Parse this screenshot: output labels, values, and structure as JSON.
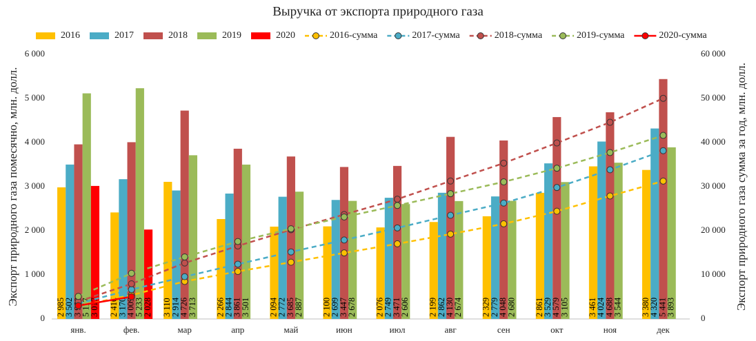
{
  "chart_data": {
    "type": "bar",
    "title": "Выручка от экспорта природного газа",
    "y_label": "Экспорт природного газа помесячно, млн. долл.",
    "y2_label": "Экспорт природного газа сумма за год, млн. долл.",
    "categories": [
      "янв.",
      "фев.",
      "мар",
      "апр",
      "май",
      "июн",
      "июл",
      "авг",
      "сен",
      "окт",
      "ноя",
      "дек"
    ],
    "ylim": [
      0,
      6000
    ],
    "yticks": [
      0,
      {
        "value": 1000,
        "label": "1 000"
      },
      {
        "value": 2000,
        "label": "2 000"
      },
      {
        "value": 3000,
        "label": "3 000"
      },
      {
        "value": 4000,
        "label": "4 000"
      },
      {
        "value": 5000,
        "label": "5 000"
      },
      {
        "value": 6000,
        "label": "6 000"
      }
    ],
    "y2lim": [
      0,
      60000
    ],
    "y2ticks": [
      0,
      {
        "value": 10000,
        "label": "10 000"
      },
      {
        "value": 20000,
        "label": "20 000"
      },
      {
        "value": 30000,
        "label": "30 000"
      },
      {
        "value": 40000,
        "label": "40 000"
      },
      {
        "value": 50000,
        "label": "50 000"
      },
      {
        "value": 60000,
        "label": "60 000"
      }
    ],
    "grid": false,
    "legend": "top",
    "series": [
      {
        "name": "2016",
        "type": "bar",
        "color": "#ffc000",
        "values": [
          2985,
          2416,
          3110,
          2266,
          2094,
          2100,
          2076,
          2199,
          2329,
          2861,
          3461,
          3380
        ],
        "value_labels": [
          "2 985",
          "2 416",
          "3 110",
          "2 266",
          "2 094",
          "2 100",
          "2 076",
          "2 199",
          "2 329",
          "2 861",
          "3 461",
          "3 380"
        ]
      },
      {
        "name": "2017",
        "type": "bar",
        "color": "#4bacc6",
        "values": [
          3502,
          3170,
          2914,
          2844,
          2772,
          2699,
          2749,
          2862,
          2779,
          3529,
          4024,
          4320
        ],
        "value_labels": [
          "3 502",
          "3 170",
          "2 914",
          "2 844",
          "2 772",
          "2 699",
          "2 749",
          "2 862",
          "2 779",
          "3 529",
          "4 024",
          "4 320"
        ]
      },
      {
        "name": "2018",
        "type": "bar",
        "color": "#c0504d",
        "values": [
          3960,
          4009,
          4726,
          3861,
          3685,
          3447,
          3471,
          4130,
          4048,
          4579,
          4688,
          5441
        ],
        "value_labels": [
          "3 960",
          "4 009",
          "4 726",
          "3 861",
          "3 685",
          "3 447",
          "3 471",
          "4 130",
          "4 048",
          "4 579",
          "4 688",
          "5 441"
        ]
      },
      {
        "name": "2019",
        "type": "bar",
        "color": "#9bbb59",
        "values": [
          5117,
          5233,
          3713,
          3501,
          2887,
          2678,
          2606,
          2674,
          2680,
          3105,
          3544,
          3893
        ],
        "value_labels": [
          "5 117",
          "5 233",
          "3 713",
          "3 501",
          "2 887",
          "2 678",
          "2 606",
          "2 674",
          "2 680",
          "3 105",
          "3 544",
          "3 893"
        ]
      },
      {
        "name": "2020",
        "type": "bar",
        "color": "#ff0000",
        "values": [
          3017,
          2028,
          null,
          null,
          null,
          null,
          null,
          null,
          null,
          null,
          null,
          null
        ],
        "value_labels": [
          "3 017",
          "2 028",
          null,
          null,
          null,
          null,
          null,
          null,
          null,
          null,
          null,
          null
        ]
      },
      {
        "name": "2016-сумма",
        "type": "line",
        "axis": "y2",
        "dashed": true,
        "color": "#ffc000",
        "values": [
          2985,
          5401,
          8511,
          10777,
          12871,
          14971,
          17047,
          19246,
          21575,
          24436,
          27897,
          31277
        ]
      },
      {
        "name": "2017-сумма",
        "type": "line",
        "axis": "y2",
        "dashed": true,
        "color": "#4bacc6",
        "values": [
          3502,
          6672,
          9586,
          12430,
          15202,
          17901,
          20650,
          23512,
          26291,
          29820,
          33844,
          38164
        ]
      },
      {
        "name": "2018-сумма",
        "type": "line",
        "axis": "y2",
        "dashed": true,
        "color": "#c0504d",
        "values": [
          3960,
          7969,
          12695,
          16556,
          20241,
          23688,
          27159,
          31289,
          35337,
          39916,
          44604,
          50045
        ]
      },
      {
        "name": "2019-сумма",
        "type": "line",
        "axis": "y2",
        "dashed": true,
        "color": "#9bbb59",
        "values": [
          5117,
          10350,
          14063,
          17564,
          20451,
          23129,
          25735,
          28409,
          31089,
          34194,
          37738,
          41631
        ]
      },
      {
        "name": "2020-сумма",
        "type": "line",
        "axis": "y2",
        "dashed": false,
        "color": "#ff0000",
        "values": [
          3017,
          5045,
          null,
          null,
          null,
          null,
          null,
          null,
          null,
          null,
          null,
          null
        ]
      }
    ]
  }
}
